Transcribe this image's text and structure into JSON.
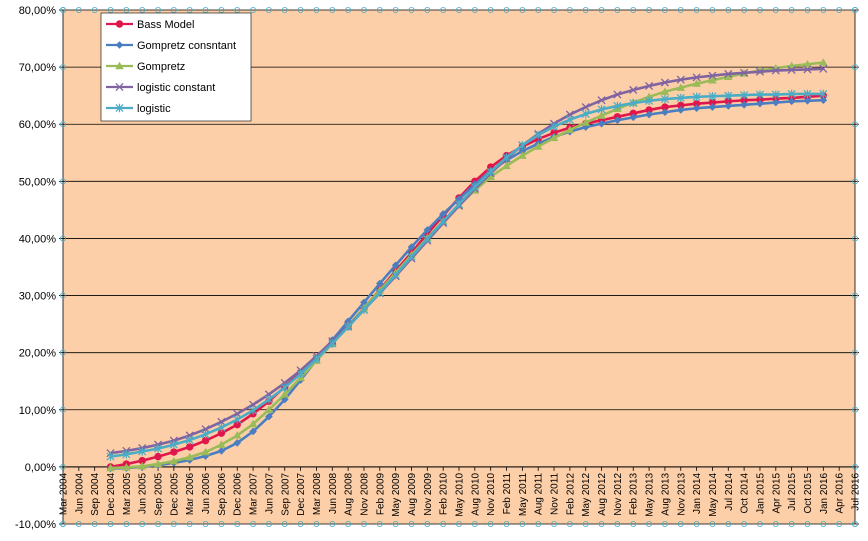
{
  "chart_data": {
    "type": "line",
    "ylim": [
      -0.1,
      0.8
    ],
    "y_tick_labels": [
      "-10,00%",
      "0,00%",
      "10,00%",
      "20,00%",
      "30,00%",
      "40,00%",
      "50,00%",
      "60,00%",
      "70,00%",
      "80,00%"
    ],
    "y_ticks": [
      -0.1,
      0.0,
      0.1,
      0.2,
      0.3,
      0.4,
      0.5,
      0.6,
      0.7,
      0.8
    ],
    "x_tick_labels": [
      "Mar 2004",
      "Jun 2004",
      "Sep 2004",
      "Dec 2004",
      "Mar 2005",
      "Jun 2005",
      "Sep 2005",
      "Dec 2005",
      "Mar 2006",
      "Jun 2006",
      "Sep 2006",
      "Dec 2006",
      "Mar 2007",
      "Jun 2007",
      "Sep 2007",
      "Dec 2007",
      "Mar 2008",
      "Jun 2008",
      "Aug 2008",
      "Nov 2008",
      "Feb 2009",
      "May 2009",
      "Aug 2009",
      "Nov 2009",
      "Feb 2010",
      "May 2010",
      "Aug 2010",
      "Nov 2010",
      "Feb 2011",
      "May 2011",
      "Aug 2011",
      "Nov 2011",
      "Feb 2012",
      "May 2012",
      "Aug 2012",
      "Nov 2012",
      "Feb 2013",
      "May 2013",
      "Aug 2013",
      "Nov 2013",
      "Jan 2014",
      "May 2014",
      "Jul 2014",
      "Oct 2014",
      "Jan 2015",
      "Apr 2015",
      "Jul 2015",
      "Oct 2015",
      "Jan 2016",
      "Apr 2016",
      "Jul 2016"
    ],
    "grid": "horizontal",
    "legend_placement": "top-left",
    "colors": {
      "plot_background": "#FCCFA8",
      "gridline": "#000000",
      "bass": "#E0174C",
      "gompertz_constant": "#4A7EC0",
      "gompertz": "#9BBB59",
      "logistic_constant": "#8064A2",
      "logistic": "#4BACC6"
    },
    "series": [
      {
        "name": "Bass Model",
        "marker": "circle",
        "start_index": 3,
        "values": [
          0.0,
          0.005,
          0.011,
          0.018,
          0.026,
          0.035,
          0.046,
          0.059,
          0.074,
          0.093,
          0.115,
          0.14,
          0.165,
          0.19,
          0.216,
          0.246,
          0.278,
          0.31,
          0.343,
          0.375,
          0.408,
          0.44,
          0.471,
          0.5,
          0.525,
          0.545,
          0.561,
          0.574,
          0.585,
          0.594,
          0.601,
          0.607,
          0.613,
          0.619,
          0.625,
          0.63,
          0.633,
          0.636,
          0.638,
          0.64,
          0.642,
          0.643,
          0.645,
          0.646,
          0.648,
          0.65
        ]
      },
      {
        "name": "Gompretz consntant",
        "marker": "diamond",
        "start_index": 3,
        "values": [
          -0.003,
          -0.002,
          0.0,
          0.003,
          0.007,
          0.012,
          0.019,
          0.028,
          0.042,
          0.062,
          0.088,
          0.118,
          0.152,
          0.187,
          0.222,
          0.255,
          0.288,
          0.321,
          0.353,
          0.385,
          0.415,
          0.443,
          0.469,
          0.495,
          0.518,
          0.537,
          0.553,
          0.566,
          0.578,
          0.587,
          0.595,
          0.601,
          0.607,
          0.612,
          0.617,
          0.621,
          0.625,
          0.628,
          0.63,
          0.632,
          0.634,
          0.636,
          0.638,
          0.64,
          0.641,
          0.642
        ]
      },
      {
        "name": "Gompretz",
        "marker": "triangle",
        "start_index": 3,
        "values": [
          -0.002,
          -0.001,
          0.001,
          0.005,
          0.01,
          0.017,
          0.026,
          0.039,
          0.055,
          0.075,
          0.1,
          0.127,
          0.156,
          0.186,
          0.216,
          0.247,
          0.278,
          0.309,
          0.34,
          0.371,
          0.401,
          0.43,
          0.458,
          0.484,
          0.508,
          0.527,
          0.545,
          0.561,
          0.576,
          0.59,
          0.603,
          0.615,
          0.627,
          0.638,
          0.648,
          0.657,
          0.664,
          0.671,
          0.677,
          0.683,
          0.689,
          0.694,
          0.698,
          0.702,
          0.705,
          0.708
        ]
      },
      {
        "name": "logistic constant",
        "marker": "x",
        "start_index": 3,
        "values": [
          0.024,
          0.028,
          0.033,
          0.039,
          0.046,
          0.055,
          0.066,
          0.079,
          0.093,
          0.109,
          0.127,
          0.147,
          0.169,
          0.194,
          0.22,
          0.247,
          0.275,
          0.304,
          0.334,
          0.365,
          0.396,
          0.427,
          0.457,
          0.487,
          0.514,
          0.54,
          0.563,
          0.583,
          0.601,
          0.617,
          0.63,
          0.642,
          0.652,
          0.66,
          0.667,
          0.673,
          0.678,
          0.682,
          0.685,
          0.688,
          0.69,
          0.692,
          0.694,
          0.695,
          0.696,
          0.697
        ]
      },
      {
        "name": "logistic",
        "marker": "star",
        "start_index": 3,
        "values": [
          0.018,
          0.022,
          0.027,
          0.032,
          0.039,
          0.047,
          0.057,
          0.069,
          0.083,
          0.099,
          0.118,
          0.139,
          0.163,
          0.189,
          0.216,
          0.245,
          0.275,
          0.305,
          0.336,
          0.368,
          0.399,
          0.43,
          0.46,
          0.49,
          0.517,
          0.542,
          0.563,
          0.581,
          0.596,
          0.608,
          0.618,
          0.626,
          0.632,
          0.637,
          0.641,
          0.644,
          0.646,
          0.648,
          0.649,
          0.65,
          0.651,
          0.652,
          0.652,
          0.653,
          0.653,
          0.653
        ]
      }
    ]
  }
}
